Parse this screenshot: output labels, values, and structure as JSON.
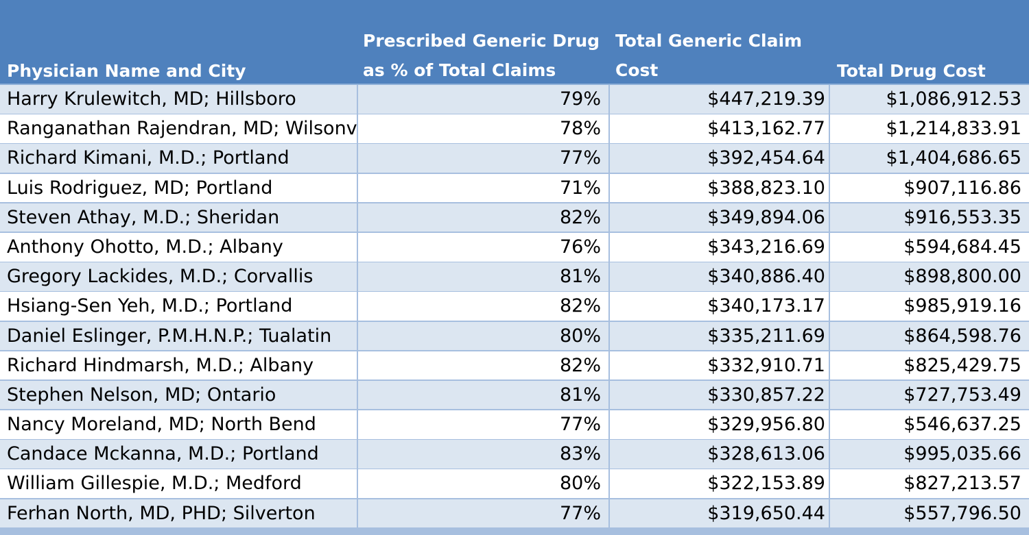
{
  "header": {
    "name_label": "Physician Name and City",
    "pct_label": "Prescribed Generic Drug as % of Total Claims",
    "generic_cost_label": "Total Generic Claim Cost",
    "total_cost_label": "Total Drug Cost"
  },
  "colors": {
    "header_bg": "#4f81bd",
    "header_text": "#ffffff",
    "band_row": "#dce6f1",
    "plain_row": "#ffffff",
    "grid": "#a7bfdf"
  },
  "rows": [
    {
      "name": "Harry Krulewitch, MD; Hillsboro",
      "pct": "79%",
      "generic_cost": "$447,219.39",
      "total_cost": "$1,086,912.53"
    },
    {
      "name": "Ranganathan Rajendran, MD; Wilsonville",
      "pct": "78%",
      "generic_cost": "$413,162.77",
      "total_cost": "$1,214,833.91"
    },
    {
      "name": "Richard Kimani, M.D.; Portland",
      "pct": "77%",
      "generic_cost": "$392,454.64",
      "total_cost": "$1,404,686.65"
    },
    {
      "name": "Luis Rodriguez, MD; Portland",
      "pct": "71%",
      "generic_cost": "$388,823.10",
      "total_cost": "$907,116.86"
    },
    {
      "name": "Steven Athay, M.D.; Sheridan",
      "pct": "82%",
      "generic_cost": "$349,894.06",
      "total_cost": "$916,553.35"
    },
    {
      "name": "Anthony Ohotto, M.D.; Albany",
      "pct": "76%",
      "generic_cost": "$343,216.69",
      "total_cost": "$594,684.45"
    },
    {
      "name": "Gregory Lackides, M.D.; Corvallis",
      "pct": "81%",
      "generic_cost": "$340,886.40",
      "total_cost": "$898,800.00"
    },
    {
      "name": "Hsiang-Sen Yeh, M.D.; Portland",
      "pct": "82%",
      "generic_cost": "$340,173.17",
      "total_cost": "$985,919.16"
    },
    {
      "name": "Daniel Eslinger, P.M.H.N.P.; Tualatin",
      "pct": "80%",
      "generic_cost": "$335,211.69",
      "total_cost": "$864,598.76"
    },
    {
      "name": "Richard Hindmarsh, M.D.; Albany",
      "pct": "82%",
      "generic_cost": "$332,910.71",
      "total_cost": "$825,429.75"
    },
    {
      "name": "Stephen Nelson, MD; Ontario",
      "pct": "81%",
      "generic_cost": "$330,857.22",
      "total_cost": "$727,753.49"
    },
    {
      "name": "Nancy Moreland, MD; North Bend",
      "pct": "77%",
      "generic_cost": "$329,956.80",
      "total_cost": "$546,637.25"
    },
    {
      "name": "Candace Mckanna, M.D.; Portland",
      "pct": "83%",
      "generic_cost": "$328,613.06",
      "total_cost": "$995,035.66"
    },
    {
      "name": "William Gillespie, M.D.; Medford",
      "pct": "80%",
      "generic_cost": "$322,153.89",
      "total_cost": "$827,213.57"
    },
    {
      "name": "Ferhan North, MD, PHD; Silverton",
      "pct": "77%",
      "generic_cost": "$319,650.44",
      "total_cost": "$557,796.50"
    }
  ]
}
